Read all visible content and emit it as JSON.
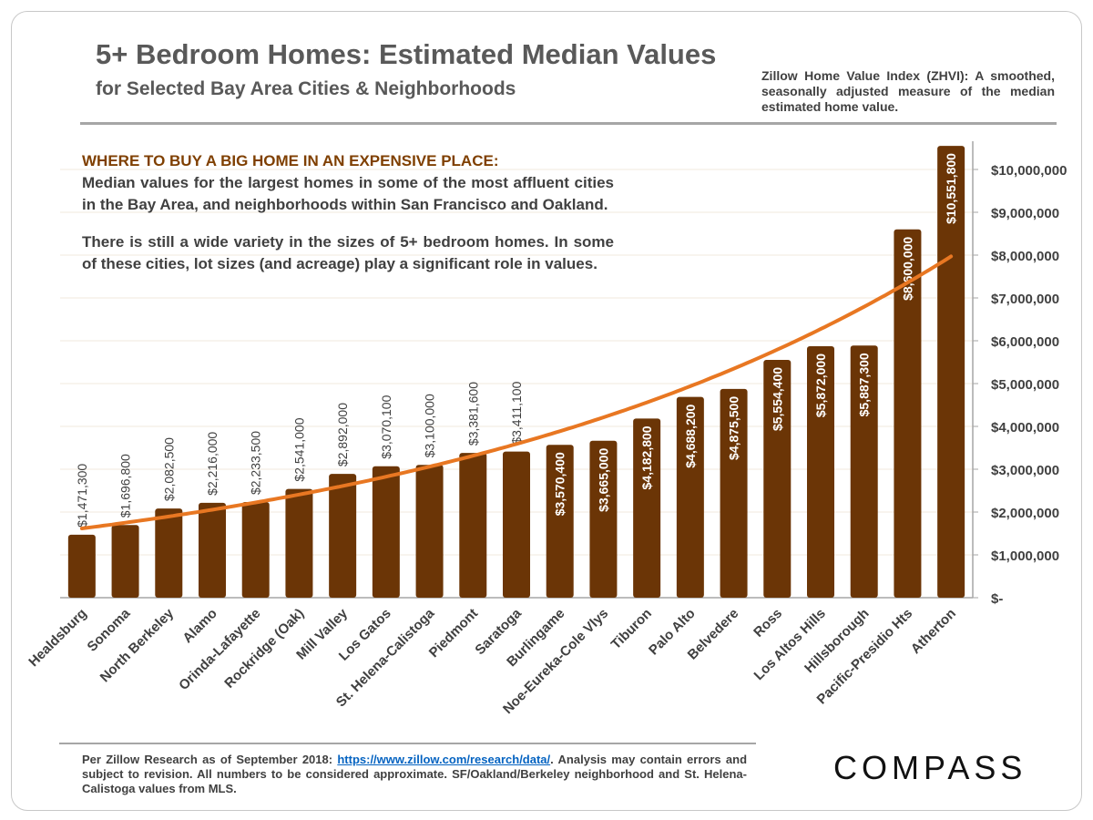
{
  "title": "5+ Bedroom Homes: Estimated Median Values",
  "subtitle": "for Selected Bay Area Cities & Neighborhoods",
  "note": "Zillow Home Value Index (ZHVI): A smoothed, seasonally adjusted measure of the median estimated home value.",
  "callout": {
    "heading": "WHERE TO BUY A BIG HOME IN AN EXPENSIVE PLACE:",
    "para1": "Median values for the largest homes in some of the most affluent cities in the Bay Area, and neighborhoods within San Francisco and Oakland.",
    "para2": "There is still a wide variety in the sizes of 5+ bedroom homes. In some of these cities, lot sizes (and acreage) play a significant role in values."
  },
  "footer": {
    "pre": "Per Zillow Research as of September 2018: ",
    "link": "https://www.zillow.com/research/data/",
    "post": ". Analysis may contain errors and subject to revision. All numbers to be considered approximate. SF/Oakland/Berkeley neighborhood and St. Helena-Calistoga values from MLS."
  },
  "logo": "COMPASS",
  "chart_data": {
    "type": "bar",
    "categories": [
      "Healdsburg",
      "Sonoma",
      "North Berkeley",
      "Alamo",
      "Orinda-Lafayette",
      "Rockridge (Oak)",
      "Mill Valley",
      "Los Gatos",
      "St. Helena-Calistoga",
      "Piedmont",
      "Saratoga",
      "Burlingame",
      "Noe-Eureka-Cole Vlys",
      "Tiburon",
      "Palo Alto",
      "Belvedere",
      "Ross",
      "Los Altos Hills",
      "Hillsborough",
      "Pacific-Presidio Hts",
      "Atherton"
    ],
    "values": [
      1471300,
      1696800,
      2082500,
      2216000,
      2233500,
      2541000,
      2892000,
      3070100,
      3100000,
      3381600,
      3411100,
      3570400,
      3665000,
      4182800,
      4688200,
      4875500,
      5554400,
      5872000,
      5887300,
      8600000,
      10551800
    ],
    "data_labels": [
      "$1,471,300",
      "$1,696,800",
      "$2,082,500",
      "$2,216,000",
      "$2,233,500",
      "$2,541,000",
      "$2,892,000",
      "$3,070,100",
      "$3,100,000",
      "$3,381,600",
      "$3,411,100",
      "$3,570,400",
      "$3,665,000",
      "$4,182,800",
      "$4,688,200",
      "$4,875,500",
      "$5,554,400",
      "$5,872,000",
      "$5,887,300",
      "$8,600,000",
      "$10,551,800"
    ],
    "yticks": [
      "$-",
      "$1,000,000",
      "$2,000,000",
      "$3,000,000",
      "$4,000,000",
      "$5,000,000",
      "$6,000,000",
      "$7,000,000",
      "$8,000,000",
      "$9,000,000",
      "$10,000,000"
    ],
    "ylim": [
      0,
      10000000
    ],
    "yaxis_position": "right",
    "grid": true,
    "trendline": "exponential",
    "colors": {
      "bar": "#6b3506",
      "trend": "#e87722",
      "grid": "#f2e8dc",
      "axis": "#a6a6a6",
      "tick_label": "#404040"
    }
  }
}
